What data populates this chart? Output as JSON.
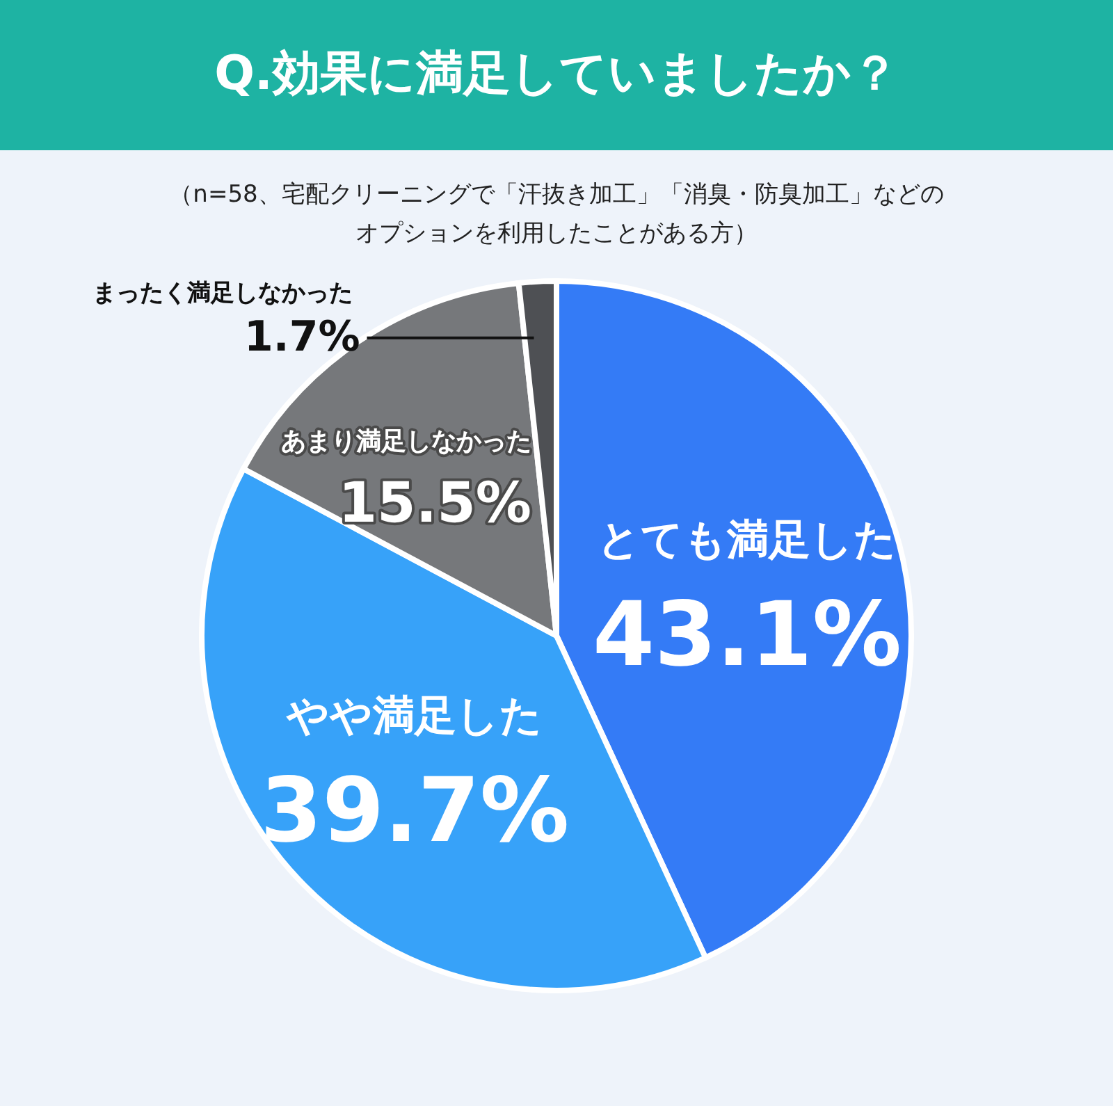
{
  "chart_data": {
    "type": "pie",
    "title": "Q.効果に満足していましたか？",
    "subtitle": [
      "（n=58、宅配クリーニングで「汗抜き加工」「消臭・防臭加工」などの",
      "オプションを利用したことがある方）"
    ],
    "categories": [
      "とても満足した",
      "やや満足した",
      "あまり満足しなかった",
      "まったく満足しなかった"
    ],
    "values": [
      43.1,
      39.7,
      15.5,
      1.7
    ],
    "value_labels": [
      "43.1%",
      "39.7%",
      "15.5%",
      "1.7%"
    ],
    "colors": [
      "#347bf6",
      "#37a2f9",
      "#76787b",
      "#4e5054"
    ]
  }
}
